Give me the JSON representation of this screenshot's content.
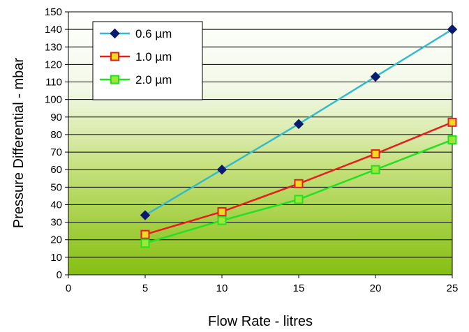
{
  "chart_data": {
    "type": "line",
    "title": "",
    "xlabel": "Flow Rate - litres",
    "ylabel": "Pressure Differential - mbar",
    "xlim": [
      0,
      25
    ],
    "ylim": [
      0,
      150
    ],
    "x_ticks": [
      0,
      5,
      10,
      15,
      20,
      25
    ],
    "y_ticks": [
      0,
      10,
      20,
      30,
      40,
      50,
      60,
      70,
      80,
      90,
      100,
      110,
      120,
      130,
      140,
      150
    ],
    "grid": "horizontal",
    "background": "vertical gradient white to green",
    "legend_position": "top-left",
    "x": [
      5,
      10,
      15,
      20,
      25
    ],
    "series": [
      {
        "name": "0.6 µm",
        "values": [
          34,
          60,
          86,
          113,
          140
        ],
        "color": "#33BBCC",
        "marker": "diamond",
        "marker_fill": "#0A1A6E",
        "marker_stroke": "#0A1A6E"
      },
      {
        "name": "1.0 µm",
        "values": [
          23,
          36,
          52,
          69,
          87
        ],
        "color": "#E81E1E",
        "marker": "square",
        "marker_fill": "#F5D820",
        "marker_stroke": "#E81E1E"
      },
      {
        "name": "2.0 µm",
        "values": [
          18,
          31,
          43,
          60,
          77
        ],
        "color": "#22E022",
        "marker": "square",
        "marker_fill": "#9CE83A",
        "marker_stroke": "#22E022"
      }
    ]
  }
}
